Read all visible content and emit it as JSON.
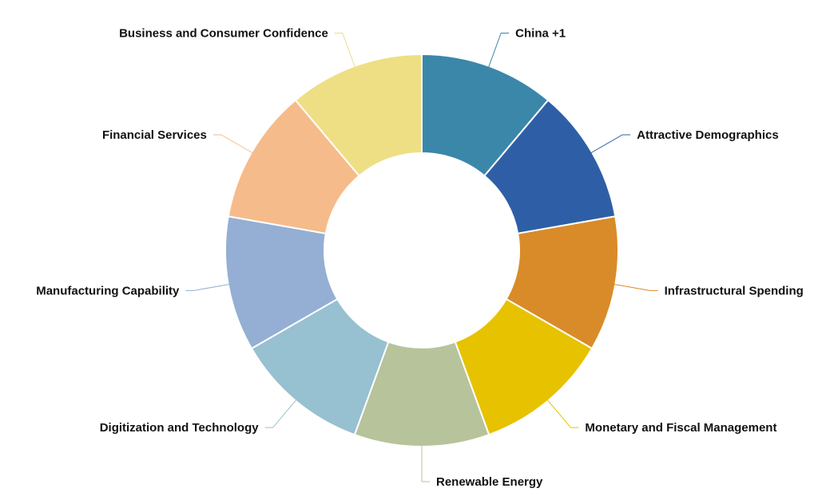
{
  "chart_data": {
    "type": "donut",
    "categories": [
      "China +1",
      "Attractive Demographics",
      "Infrastructural Spending",
      "Monetary and Fiscal Management",
      "Renewable Energy",
      "Digitization and Technology",
      "Manufacturing Capability",
      "Financial Services",
      "Business and Consumer Confidence"
    ],
    "values": [
      1,
      1,
      1,
      1,
      1,
      1,
      1,
      1,
      1
    ],
    "colors": [
      "#3a87aa",
      "#2e5fa6",
      "#d98b29",
      "#e6c200",
      "#b7c39b",
      "#97c0d0",
      "#94afd3",
      "#f6bb8a",
      "#eedf84"
    ]
  }
}
